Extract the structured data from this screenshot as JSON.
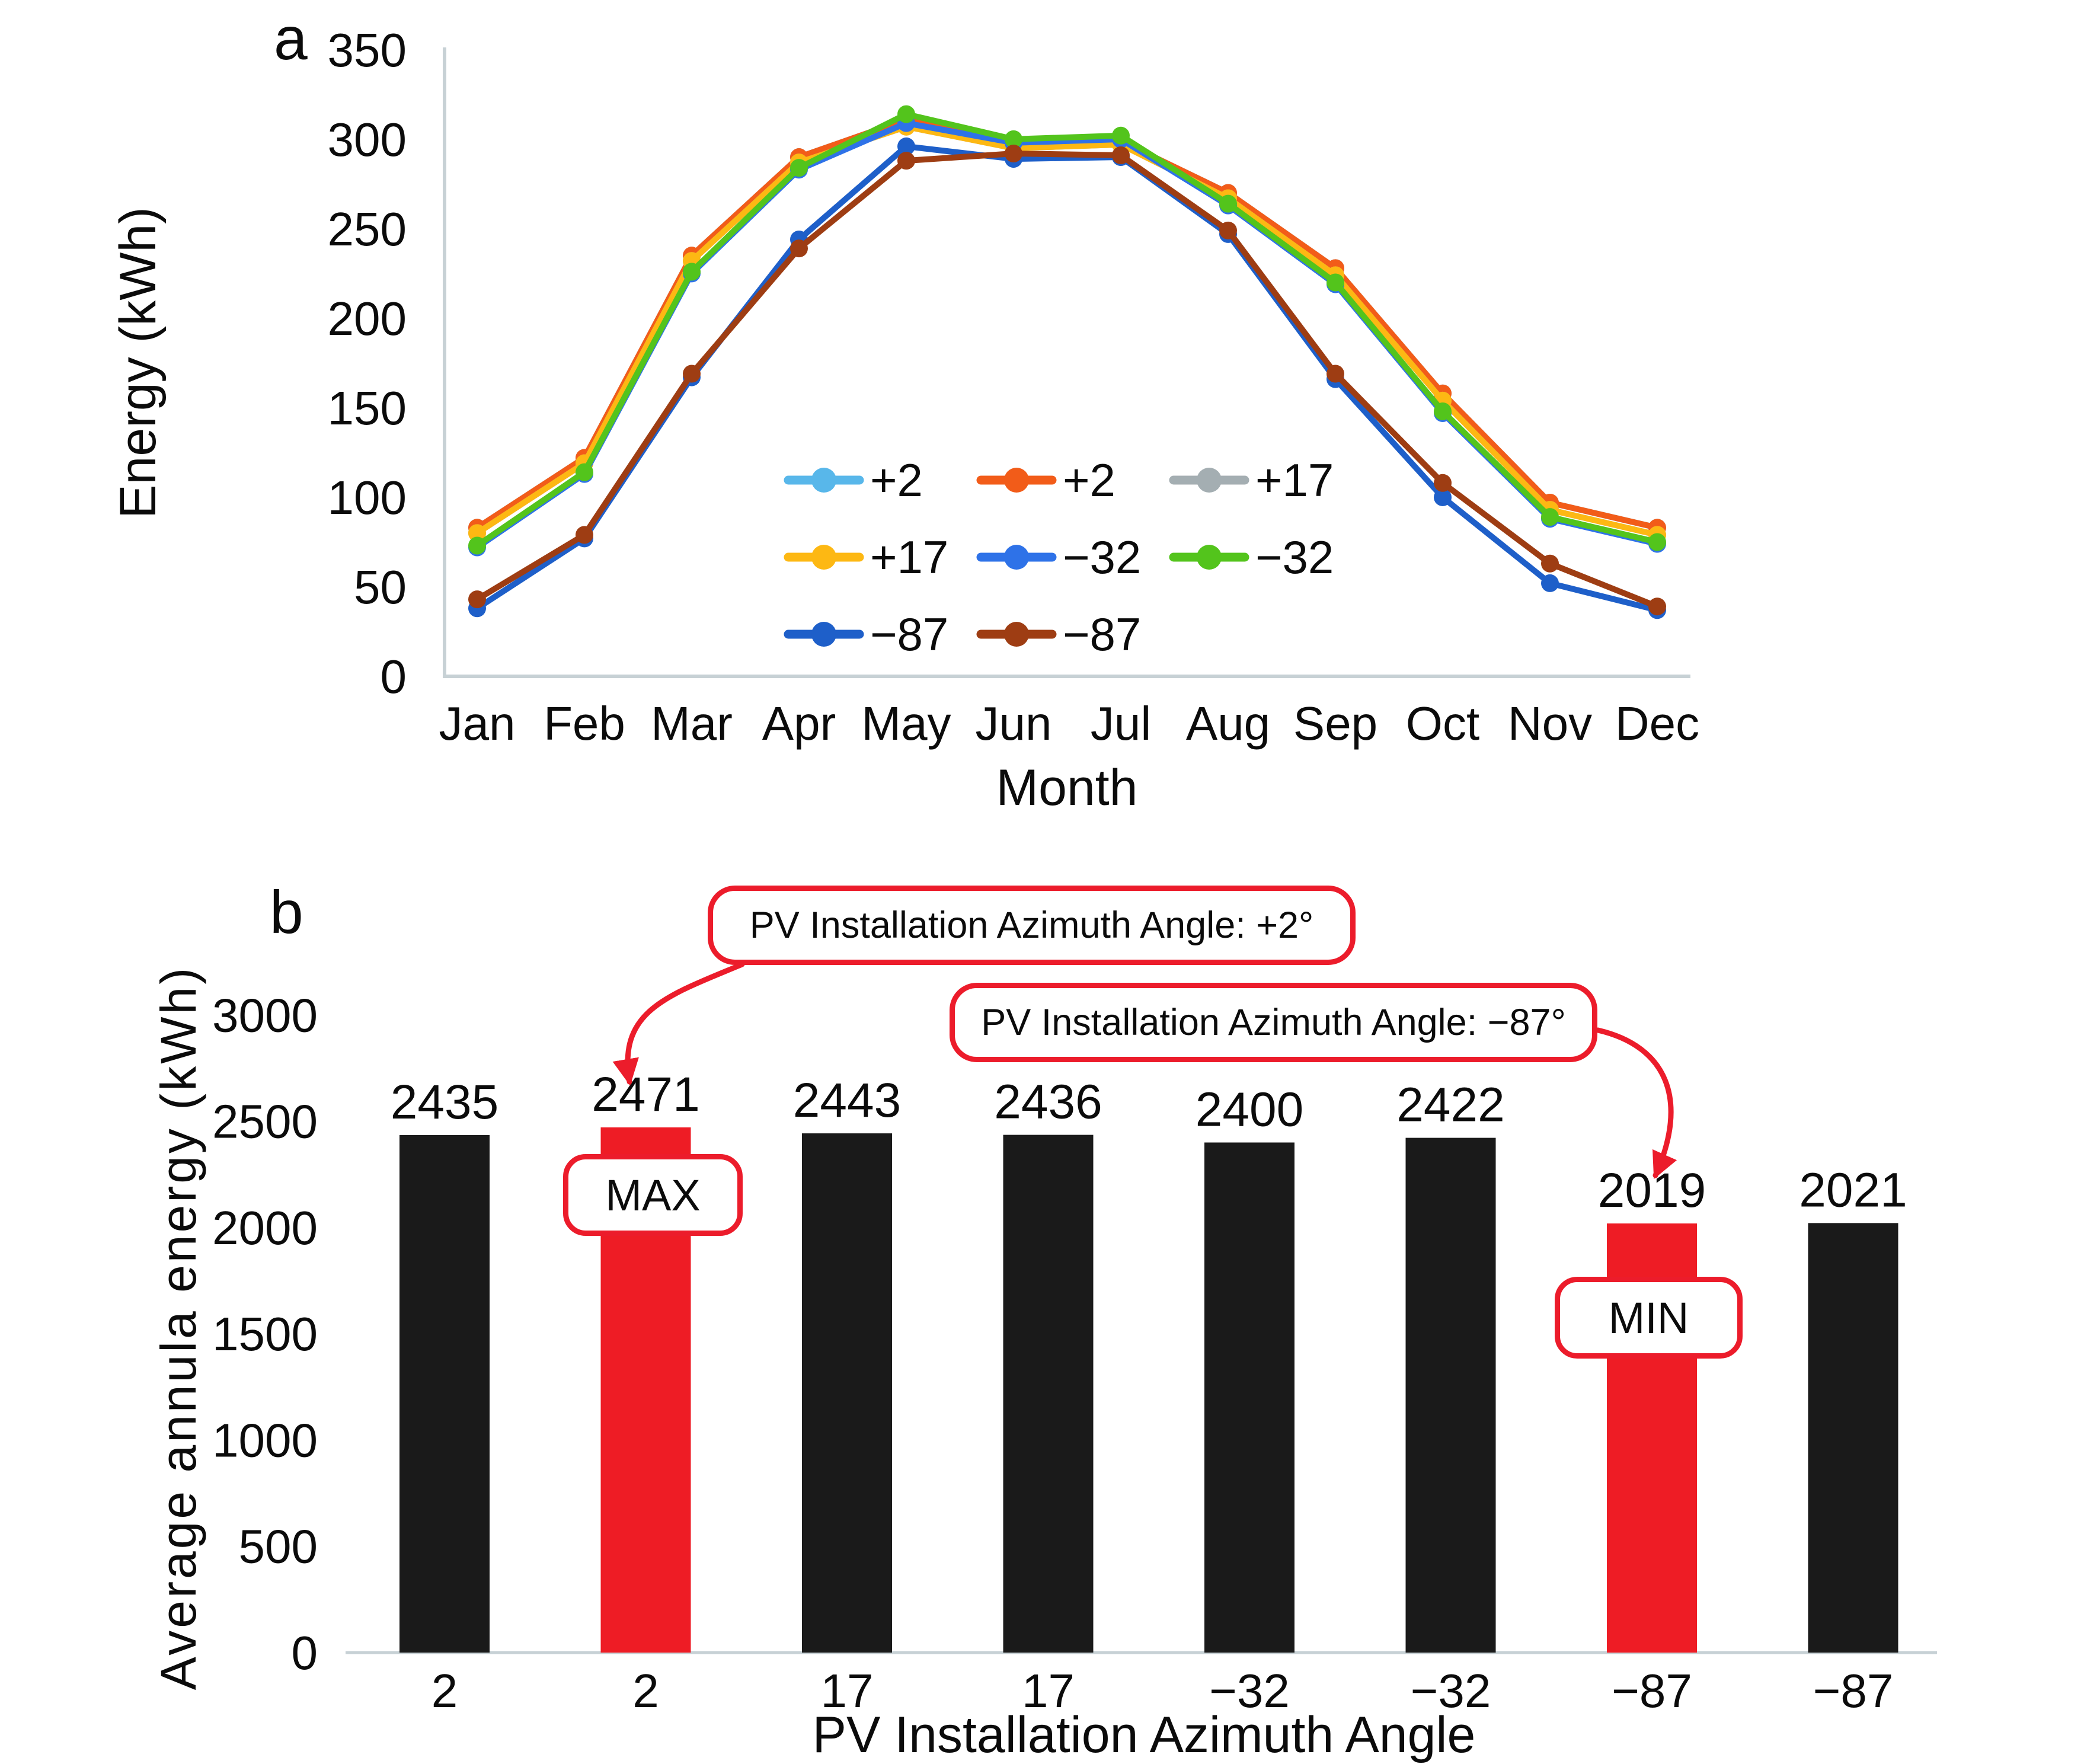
{
  "figure": {
    "panel_a_label": "a",
    "panel_b_label": "b"
  },
  "colors": {
    "accent_red": "#EC1C2B",
    "bar_black": "#1A1A1A",
    "axis_gray": "#C7D1D5",
    "text_black": "#0b0b0b"
  },
  "chart_data": [
    {
      "type": "line",
      "panel": "a",
      "xlabel": "Month",
      "ylabel": "Energy (kWh)",
      "ylim": [
        0,
        350
      ],
      "yticks": [
        350,
        300,
        250,
        200,
        150,
        100,
        50,
        0
      ],
      "categories": [
        "Jan",
        "Feb",
        "Mar",
        "Apr",
        "May",
        "Jun",
        "Jul",
        "Aug",
        "Sep",
        "Oct",
        "Nov",
        "Dec"
      ],
      "grid": false,
      "legend_position": "inside-center-bottom",
      "legend_columns": 3,
      "series": [
        {
          "name": "+2",
          "color": "#58B7EA",
          "values": [
            83,
            122,
            235,
            290,
            311,
            297,
            299,
            270,
            228,
            158,
            97,
            83
          ]
        },
        {
          "name": "+2",
          "color": "#F25C19",
          "values": [
            83,
            122,
            235,
            290,
            311,
            297,
            299,
            270,
            228,
            158,
            97,
            83
          ]
        },
        {
          "name": "+17",
          "color": "#A4AEB2",
          "values": [
            80,
            119,
            232,
            287,
            307,
            295,
            297,
            267,
            224,
            154,
            93,
            79
          ]
        },
        {
          "name": "+17",
          "color": "#FDB813",
          "values": [
            80,
            119,
            232,
            287,
            307,
            295,
            297,
            267,
            224,
            154,
            93,
            79
          ]
        },
        {
          "name": "−32",
          "color": "#2E72E8",
          "values": [
            72,
            113,
            225,
            283,
            309,
            298,
            300,
            263,
            219,
            147,
            88,
            74
          ]
        },
        {
          "name": "−32",
          "color": "#53C41C",
          "values": [
            73,
            114,
            226,
            284,
            314,
            300,
            302,
            264,
            220,
            148,
            89,
            75
          ]
        },
        {
          "name": "−87",
          "color": "#1E5FC9",
          "values": [
            38,
            77,
            167,
            244,
            296,
            289,
            290,
            247,
            166,
            100,
            52,
            37
          ]
        },
        {
          "name": "−87",
          "color": "#9E3D13",
          "values": [
            43,
            79,
            169,
            239,
            288,
            292,
            291,
            249,
            169,
            108,
            63,
            39
          ]
        }
      ]
    },
    {
      "type": "bar",
      "panel": "b",
      "xlabel": "PV Installation Azimuth Angle",
      "ylabel": "Average annula energy (kWh)",
      "ylim": [
        0,
        3000
      ],
      "yticks": [
        3000,
        2500,
        2000,
        1500,
        1000,
        500,
        0
      ],
      "categories": [
        "2",
        "2",
        "17",
        "17",
        "−32",
        "−32",
        "−87",
        "−87"
      ],
      "values": [
        2435,
        2471,
        2443,
        2436,
        2400,
        2422,
        2019,
        2021
      ],
      "bar_colors": [
        "#1A1A1A",
        "#EE1C25",
        "#1A1A1A",
        "#1A1A1A",
        "#1A1A1A",
        "#1A1A1A",
        "#EE1C25",
        "#1A1A1A"
      ],
      "grid": false,
      "annotations": {
        "max_callout": "PV Installation Azimuth Angle: +2°",
        "min_callout": "PV Installation Azimuth Angle: −87°",
        "max_badge": "MAX",
        "min_badge": "MIN"
      }
    }
  ]
}
